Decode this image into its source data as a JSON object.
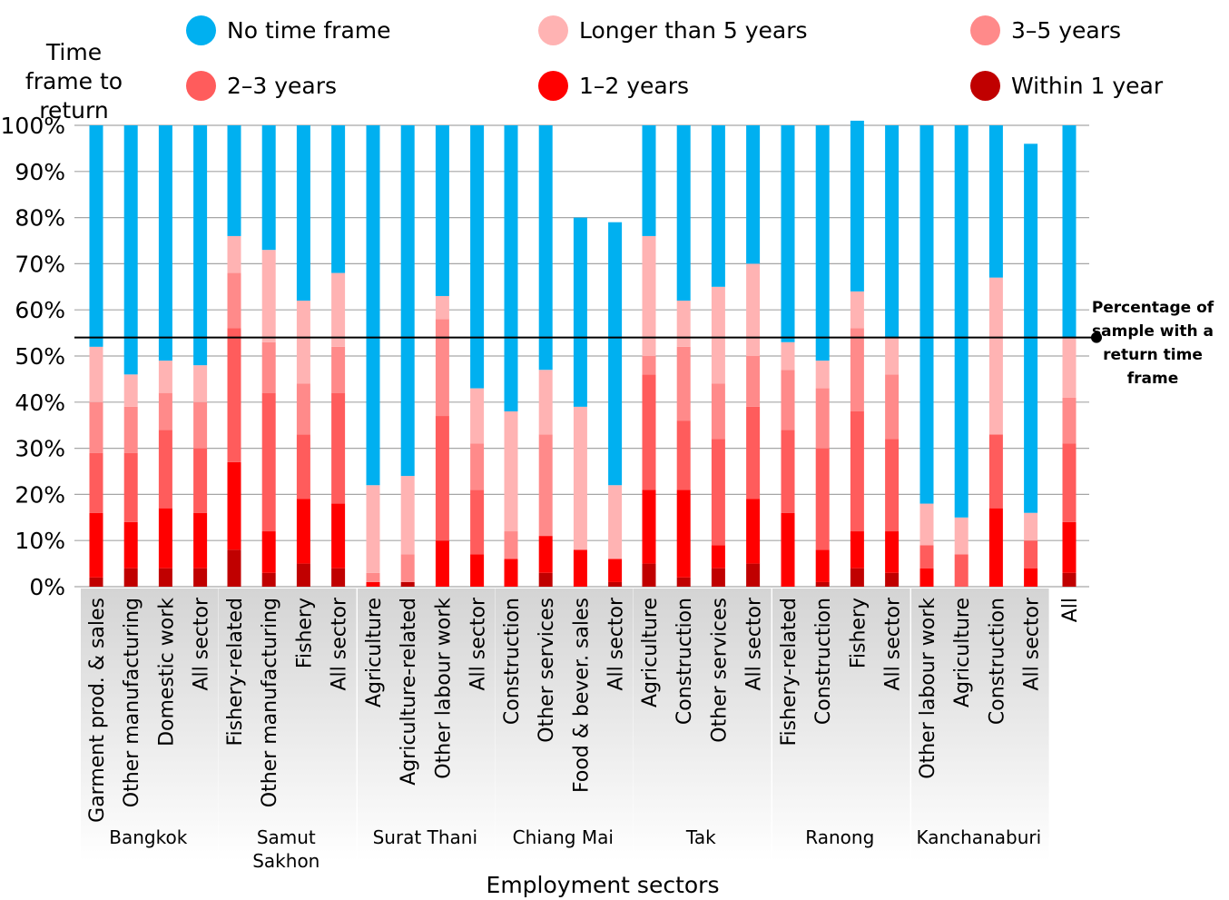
{
  "chart_data": {
    "type": "bar",
    "stacked": true,
    "ylabel": "Time frame to return",
    "xlabel": "Employment sectors",
    "ylim": [
      0,
      100
    ],
    "yticks": [
      "0%",
      "10%",
      "20%",
      "30%",
      "40%",
      "50%",
      "60%",
      "70%",
      "80%",
      "90%",
      "100%"
    ],
    "grid": true,
    "legend_position": "top",
    "reference_line": {
      "value": 54,
      "label": "Percentage of sample with a return time frame"
    },
    "groups": [
      {
        "name": "Bangkok",
        "categories": [
          "Garment prod. & sales",
          "Other manufacturing",
          "Domestic work",
          "All sector"
        ]
      },
      {
        "name": "Samut Sakhon",
        "categories": [
          "Fishery-related",
          "Other manufacturing",
          "Fishery",
          "All sector"
        ]
      },
      {
        "name": "Surat Thani",
        "categories": [
          "Agriculture",
          "Agriculture-related",
          "Other labour work",
          "All sector"
        ]
      },
      {
        "name": "Chiang Mai",
        "categories": [
          "Construction",
          "Other services",
          "Food & bever. sales",
          "All sector"
        ]
      },
      {
        "name": "Tak",
        "categories": [
          "Agriculture",
          "Construction",
          "Other services",
          "All sector"
        ]
      },
      {
        "name": "Ranong",
        "categories": [
          "Fishery-related",
          "Construction",
          "Fishery",
          "All sector"
        ]
      },
      {
        "name": "Kanchanaburi",
        "categories": [
          "Other labour work",
          "Agriculture",
          "Construction",
          "All sector"
        ]
      },
      {
        "name": "",
        "categories": [
          "All"
        ]
      }
    ],
    "series": [
      {
        "name": "Within 1 year",
        "color": "#c00000",
        "values": [
          2,
          4,
          4,
          4,
          8,
          3,
          5,
          4,
          0,
          1,
          0,
          0,
          0,
          3,
          0,
          1,
          5,
          2,
          4,
          5,
          0,
          1,
          4,
          3,
          0,
          0,
          0,
          0,
          3
        ]
      },
      {
        "name": "1–2 years",
        "color": "#ff0000",
        "values": [
          14,
          10,
          13,
          12,
          19,
          9,
          14,
          14,
          1,
          0,
          10,
          7,
          6,
          8,
          8,
          5,
          16,
          19,
          5,
          14,
          16,
          7,
          8,
          9,
          4,
          0,
          17,
          4,
          11
        ]
      },
      {
        "name": "2–3 years",
        "color": "#ff5c5c",
        "values": [
          13,
          15,
          17,
          14,
          29,
          30,
          14,
          24,
          0,
          0,
          27,
          14,
          0,
          0,
          0,
          0,
          25,
          15,
          23,
          20,
          18,
          22,
          26,
          20,
          5,
          7,
          16,
          6,
          17
        ]
      },
      {
        "name": "3–5 years",
        "color": "#ff8a8a",
        "values": [
          11,
          10,
          8,
          10,
          12,
          11,
          11,
          10,
          2,
          6,
          21,
          10,
          6,
          22,
          0,
          0,
          4,
          16,
          12,
          11,
          13,
          13,
          18,
          14,
          0,
          0,
          0,
          0,
          10
        ]
      },
      {
        "name": "Longer than 5 years",
        "color": "#ffb3b3",
        "values": [
          12,
          7,
          7,
          8,
          8,
          20,
          18,
          16,
          19,
          17,
          5,
          12,
          26,
          14,
          31,
          16,
          26,
          10,
          21,
          20,
          6,
          6,
          8,
          8,
          9,
          8,
          34,
          6,
          13
        ]
      },
      {
        "name": "No time frame",
        "color": "#00b0f0",
        "values": [
          48,
          54,
          51,
          52,
          24,
          27,
          38,
          32,
          78,
          76,
          37,
          57,
          62,
          53,
          41,
          57,
          24,
          38,
          35,
          30,
          47,
          51,
          37,
          46,
          82,
          85,
          33,
          80,
          46
        ]
      }
    ]
  },
  "legend_order": [
    5,
    4,
    3,
    2,
    1,
    0
  ]
}
